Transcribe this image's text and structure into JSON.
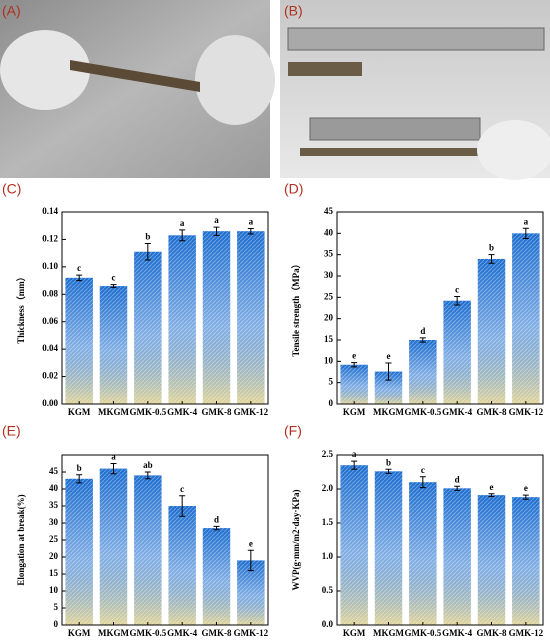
{
  "photo_labels": [
    "(A)",
    "(B)"
  ],
  "chart_data": [
    {
      "type": "bar",
      "label": "(C)",
      "ylabel": "Thickness（mm）",
      "categories": [
        "KGM",
        "MKGM",
        "GMK-0.5",
        "GMK-4",
        "GMK-8",
        "GMK-12"
      ],
      "values": [
        0.092,
        0.086,
        0.111,
        0.123,
        0.126,
        0.126
      ],
      "errors": [
        0.002,
        0.001,
        0.006,
        0.004,
        0.003,
        0.002
      ],
      "annotations": [
        "c",
        "c",
        "b",
        "a",
        "a",
        "a"
      ],
      "ylim": [
        0,
        0.14
      ],
      "yticks": [
        {
          "value": 0,
          "label": "0.00"
        },
        0.02,
        0.04,
        0.06,
        0.08,
        {
          "value": 0.1,
          "label": "0.10"
        },
        0.12,
        0.14
      ],
      "color": "#1f6fd0"
    },
    {
      "type": "bar",
      "label": "(D)",
      "ylabel": "Tensile strength（MPa）",
      "categories": [
        "KGM",
        "MKGM",
        "GMK-0.5",
        "GMK-4",
        "GMK-8",
        "GMK-12"
      ],
      "values": [
        9.2,
        7.6,
        15,
        24.2,
        34,
        40
      ],
      "errors": [
        0.5,
        2,
        0.5,
        1,
        1,
        1.2
      ],
      "annotations": [
        "e",
        "e",
        "d",
        "c",
        "b",
        "a"
      ],
      "ylim": [
        0,
        45
      ],
      "yticks": [
        0,
        5,
        10,
        15,
        20,
        25,
        30,
        35,
        40,
        45
      ],
      "color": "#1f6fd0"
    },
    {
      "type": "bar",
      "label": "(E)",
      "ylabel": "Elongation at break(%)",
      "categories": [
        "KGM",
        "MKGM",
        "GMK-0.5",
        "GMK-4",
        "GMK-8",
        "GMK-12"
      ],
      "values": [
        43,
        46,
        44,
        35,
        28.5,
        19
      ],
      "errors": [
        1.2,
        1.5,
        1,
        3,
        0.5,
        3
      ],
      "annotations": [
        "b",
        "a",
        "ab",
        "c",
        "d",
        "e"
      ],
      "ylim": [
        0,
        50
      ],
      "yticks": [
        0,
        5,
        10,
        15,
        20,
        25,
        30,
        35,
        40,
        45
      ],
      "color": "#1f6fd0"
    },
    {
      "type": "bar",
      "label": "(F)",
      "ylabel": "WVP(g·mm/m2·day·KPa)",
      "categories": [
        "KGM",
        "MKGM",
        "GMK-0.5",
        "GMK-4",
        "GMK-8",
        "GMK-12"
      ],
      "values": [
        2.35,
        2.26,
        2.1,
        2.01,
        1.91,
        1.88
      ],
      "errors": [
        0.06,
        0.03,
        0.08,
        0.03,
        0.02,
        0.03
      ],
      "annotations": [
        "a",
        "b",
        "c",
        "d",
        "e",
        "e"
      ],
      "ylim": [
        0,
        2.5
      ],
      "yticks": [
        {
          "value": 0,
          "label": "0.0"
        },
        0.5,
        {
          "value": 1,
          "label": "1.0"
        },
        1.5,
        {
          "value": 2,
          "label": "2.0"
        },
        2.5
      ],
      "color": "#1f6fd0"
    }
  ]
}
